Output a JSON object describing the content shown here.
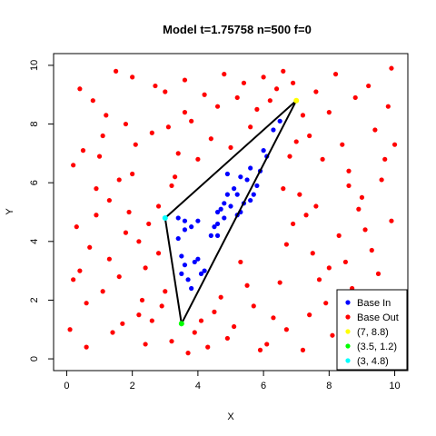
{
  "chart_data": {
    "type": "scatter",
    "title": "Model t=1.75758 n=500 f=0",
    "xlabel": "X",
    "ylabel": "Y",
    "xlim": [
      -0.4,
      10.4
    ],
    "ylim": [
      -0.4,
      10.4
    ],
    "xticks": [
      0,
      2,
      4,
      6,
      8,
      10
    ],
    "yticks": [
      0,
      2,
      4,
      6,
      8,
      10
    ],
    "grid": false,
    "legend_position": "bottom-right",
    "colors": {
      "base_in": "#0000ff",
      "base_out": "#ff0000",
      "vertex_a": "#ffff00",
      "vertex_b": "#00ff00",
      "vertex_c": "#00ffff",
      "triangle": "#000000"
    },
    "triangle": [
      [
        7,
        8.8
      ],
      [
        3.5,
        1.2
      ],
      [
        3,
        4.8
      ]
    ],
    "legend": [
      {
        "label": "Base In",
        "color": "#0000ff"
      },
      {
        "label": "Base Out",
        "color": "#ff0000"
      },
      {
        "label": "(7, 8.8)",
        "color": "#ffff00"
      },
      {
        "label": "(3.5, 1.2)",
        "color": "#00ff00"
      },
      {
        "label": "(3, 4.8)",
        "color": "#00ffff"
      }
    ],
    "series": [
      {
        "name": "Base In",
        "color": "#0000ff",
        "points": [
          [
            3.4,
            4.8
          ],
          [
            3.6,
            4.7
          ],
          [
            3.8,
            4.5
          ],
          [
            3.6,
            4.4
          ],
          [
            3.4,
            4.1
          ],
          [
            3.5,
            3.5
          ],
          [
            3.6,
            3.2
          ],
          [
            3.5,
            2.9
          ],
          [
            3.9,
            3.3
          ],
          [
            4.0,
            3.4
          ],
          [
            4.2,
            3.0
          ],
          [
            3.8,
            2.4
          ],
          [
            4.1,
            2.9
          ],
          [
            4.4,
            4.2
          ],
          [
            4.5,
            4.5
          ],
          [
            4.6,
            4.6
          ],
          [
            4.7,
            5.1
          ],
          [
            4.8,
            5.3
          ],
          [
            4.9,
            5.6
          ],
          [
            5.0,
            5.2
          ],
          [
            5.2,
            5.6
          ],
          [
            5.3,
            5.0
          ],
          [
            5.4,
            5.3
          ],
          [
            5.6,
            5.4
          ],
          [
            5.8,
            5.9
          ],
          [
            5.5,
            6.1
          ],
          [
            5.6,
            6.5
          ],
          [
            5.9,
            6.4
          ],
          [
            6.0,
            7.1
          ],
          [
            6.1,
            6.9
          ],
          [
            6.5,
            8.1
          ],
          [
            4.9,
            6.3
          ],
          [
            5.2,
            4.9
          ],
          [
            4.6,
            4.2
          ],
          [
            5.1,
            5.8
          ],
          [
            5.3,
            6.2
          ],
          [
            4.8,
            4.8
          ],
          [
            6.3,
            7.8
          ],
          [
            3.7,
            2.7
          ],
          [
            4.0,
            4.7
          ],
          [
            5.7,
            5.6
          ],
          [
            4.6,
            5.0
          ]
        ]
      },
      {
        "name": "Base Out",
        "color": "#ff0000",
        "points": [
          [
            0.1,
            1.0
          ],
          [
            0.2,
            2.7
          ],
          [
            0.4,
            9.2
          ],
          [
            0.5,
            7.1
          ],
          [
            0.7,
            3.8
          ],
          [
            0.9,
            5.8
          ],
          [
            1.1,
            2.3
          ],
          [
            1.2,
            8.3
          ],
          [
            1.4,
            0.9
          ],
          [
            1.6,
            6.1
          ],
          [
            1.8,
            4.3
          ],
          [
            2.0,
            9.6
          ],
          [
            2.2,
            1.5
          ],
          [
            2.4,
            3.1
          ],
          [
            2.6,
            7.7
          ],
          [
            2.8,
            5.2
          ],
          [
            3.0,
            9.1
          ],
          [
            3.2,
            0.6
          ],
          [
            0.3,
            4.5
          ],
          [
            0.6,
            0.4
          ],
          [
            0.8,
            8.8
          ],
          [
            1.0,
            6.9
          ],
          [
            1.3,
            3.4
          ],
          [
            1.5,
            9.8
          ],
          [
            1.7,
            1.2
          ],
          [
            1.9,
            5.0
          ],
          [
            2.1,
            7.3
          ],
          [
            2.3,
            2.0
          ],
          [
            2.5,
            4.6
          ],
          [
            2.7,
            9.3
          ],
          [
            2.9,
            1.8
          ],
          [
            3.1,
            7.9
          ],
          [
            3.3,
            6.2
          ],
          [
            3.6,
            9.5
          ],
          [
            3.8,
            8.1
          ],
          [
            4.0,
            6.8
          ],
          [
            4.2,
            9.0
          ],
          [
            4.4,
            7.5
          ],
          [
            4.6,
            8.6
          ],
          [
            4.8,
            9.7
          ],
          [
            5.0,
            7.2
          ],
          [
            5.2,
            8.9
          ],
          [
            5.4,
            9.4
          ],
          [
            5.6,
            7.9
          ],
          [
            5.8,
            8.5
          ],
          [
            6.0,
            9.6
          ],
          [
            6.2,
            8.8
          ],
          [
            6.4,
            9.2
          ],
          [
            6.6,
            9.8
          ],
          [
            6.9,
            9.4
          ],
          [
            7.2,
            8.3
          ],
          [
            7.4,
            7.6
          ],
          [
            7.6,
            9.1
          ],
          [
            7.8,
            6.8
          ],
          [
            8.0,
            8.4
          ],
          [
            8.2,
            9.7
          ],
          [
            8.4,
            7.3
          ],
          [
            8.6,
            6.4
          ],
          [
            8.8,
            8.9
          ],
          [
            9.0,
            5.5
          ],
          [
            9.2,
            9.3
          ],
          [
            9.4,
            7.8
          ],
          [
            9.6,
            6.1
          ],
          [
            9.8,
            8.6
          ],
          [
            10.0,
            7.3
          ],
          [
            7.1,
            5.6
          ],
          [
            7.3,
            4.9
          ],
          [
            7.5,
            3.6
          ],
          [
            7.7,
            2.7
          ],
          [
            7.9,
            1.9
          ],
          [
            8.1,
            0.8
          ],
          [
            8.3,
            4.2
          ],
          [
            8.5,
            3.3
          ],
          [
            8.7,
            2.4
          ],
          [
            8.9,
            5.1
          ],
          [
            9.1,
            4.4
          ],
          [
            9.3,
            3.7
          ],
          [
            9.5,
            2.9
          ],
          [
            9.7,
            1.6
          ],
          [
            9.9,
            4.7
          ],
          [
            6.1,
            0.5
          ],
          [
            6.3,
            1.4
          ],
          [
            6.5,
            2.6
          ],
          [
            6.7,
            3.9
          ],
          [
            6.9,
            4.6
          ],
          [
            6.6,
            5.8
          ],
          [
            6.8,
            6.9
          ],
          [
            7.0,
            7.4
          ],
          [
            5.9,
            0.3
          ],
          [
            5.7,
            1.8
          ],
          [
            5.5,
            2.5
          ],
          [
            5.3,
            3.3
          ],
          [
            5.1,
            1.1
          ],
          [
            4.9,
            0.7
          ],
          [
            4.7,
            2.1
          ],
          [
            4.5,
            1.6
          ],
          [
            4.3,
            0.4
          ],
          [
            4.1,
            1.3
          ],
          [
            3.9,
            0.9
          ],
          [
            3.7,
            0.2
          ],
          [
            0.2,
            6.6
          ],
          [
            0.4,
            3.0
          ],
          [
            0.6,
            1.9
          ],
          [
            0.9,
            4.9
          ],
          [
            1.1,
            7.6
          ],
          [
            1.3,
            5.4
          ],
          [
            1.6,
            2.8
          ],
          [
            1.8,
            8.0
          ],
          [
            2.0,
            6.3
          ],
          [
            2.2,
            4.0
          ],
          [
            2.4,
            0.5
          ],
          [
            2.6,
            1.3
          ],
          [
            2.8,
            3.6
          ],
          [
            3.0,
            2.3
          ],
          [
            3.2,
            5.9
          ],
          [
            3.4,
            7.0
          ],
          [
            3.6,
            8.4
          ],
          [
            9.9,
            9.9
          ],
          [
            9.5,
            0.5
          ],
          [
            8.8,
            1.2
          ],
          [
            7.2,
            0.3
          ],
          [
            6.7,
            1.0
          ],
          [
            9.2,
            2.0
          ],
          [
            8.0,
            3.1
          ],
          [
            7.4,
            1.5
          ],
          [
            8.6,
            5.9
          ],
          [
            9.7,
            6.8
          ],
          [
            7.6,
            5.2
          ]
        ]
      }
    ],
    "vertex_points": [
      {
        "x": 7,
        "y": 8.8,
        "color": "#ffff00"
      },
      {
        "x": 3.5,
        "y": 1.2,
        "color": "#00ff00"
      },
      {
        "x": 3,
        "y": 4.8,
        "color": "#00ffff"
      }
    ]
  }
}
